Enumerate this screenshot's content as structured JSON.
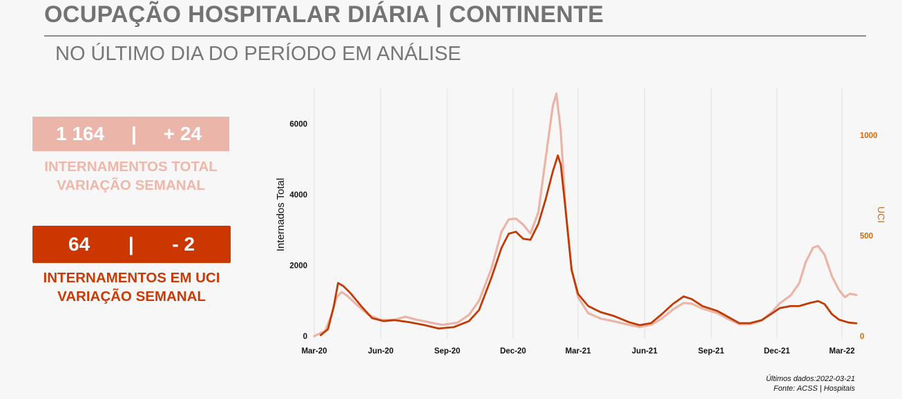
{
  "header": {
    "title": "OCUPAÇÃO HOSPITALAR DIÁRIA | CONTINENTE",
    "subtitle": "NO ÚLTIMO DIA DO PERÍODO EM ANÁLISE"
  },
  "kpis": {
    "total": {
      "value": "1 164",
      "separator": "|",
      "change": "+ 24",
      "label_line1": "INTERNAMENTOS TOTAL",
      "label_line2": "VARIAÇÃO SEMANAL",
      "color": "#ebb5aa"
    },
    "uci": {
      "value": "64",
      "separator": "|",
      "change": "- 2",
      "label_line1": "INTERNAMENTOS EM UCI",
      "label_line2": "VARIAÇÃO SEMANAL",
      "color": "#cc3700"
    }
  },
  "footnote": {
    "line1": "Últimos dados:2022-03-21",
    "line2": "Fonte: ACSS | Hospitais"
  },
  "chart_data": {
    "type": "line",
    "title": "",
    "xlabel": "",
    "ylabel": "Internados Total",
    "y2label": "UCI",
    "grid": "vertical",
    "legend": "none",
    "xlim": [
      "2020-03-01",
      "2022-03-21"
    ],
    "x_ticks": [
      {
        "date": "2020-03-01",
        "label": "Mar-20"
      },
      {
        "date": "2020-06-01",
        "label": "Jun-20"
      },
      {
        "date": "2020-09-01",
        "label": "Sep-20"
      },
      {
        "date": "2020-12-01",
        "label": "Dec-20"
      },
      {
        "date": "2021-03-01",
        "label": "Mar-21"
      },
      {
        "date": "2021-06-01",
        "label": "Jun-21"
      },
      {
        "date": "2021-09-01",
        "label": "Sep-21"
      },
      {
        "date": "2021-12-01",
        "label": "Dec-21"
      },
      {
        "date": "2022-03-01",
        "label": "Mar-22"
      }
    ],
    "ylim": [
      0,
      7000
    ],
    "y_ticks": [
      0,
      2000,
      4000,
      6000
    ],
    "y2lim": [
      0,
      1234
    ],
    "y2_ticks": [
      0,
      500,
      1000
    ],
    "y2_color": "#d06a10",
    "series": [
      {
        "axis": "left",
        "color": "#eab4a6",
        "points": [
          [
            "2020-03-01",
            0
          ],
          [
            "2020-03-16",
            150
          ],
          [
            "2020-03-25",
            600
          ],
          [
            "2020-04-01",
            1100
          ],
          [
            "2020-04-08",
            1250
          ],
          [
            "2020-04-15",
            1150
          ],
          [
            "2020-05-01",
            850
          ],
          [
            "2020-05-15",
            600
          ],
          [
            "2020-06-01",
            460
          ],
          [
            "2020-06-20",
            460
          ],
          [
            "2020-07-05",
            550
          ],
          [
            "2020-07-20",
            470
          ],
          [
            "2020-08-10",
            380
          ],
          [
            "2020-08-25",
            320
          ],
          [
            "2020-09-15",
            380
          ],
          [
            "2020-10-01",
            600
          ],
          [
            "2020-10-15",
            1000
          ],
          [
            "2020-11-01",
            1900
          ],
          [
            "2020-11-15",
            2950
          ],
          [
            "2020-11-25",
            3300
          ],
          [
            "2020-12-05",
            3320
          ],
          [
            "2020-12-15",
            3150
          ],
          [
            "2020-12-25",
            2900
          ],
          [
            "2021-01-05",
            3500
          ],
          [
            "2021-01-15",
            5000
          ],
          [
            "2021-01-25",
            6500
          ],
          [
            "2021-01-30",
            6850
          ],
          [
            "2021-02-05",
            5800
          ],
          [
            "2021-02-12",
            3500
          ],
          [
            "2021-02-20",
            1900
          ],
          [
            "2021-03-01",
            1100
          ],
          [
            "2021-03-15",
            650
          ],
          [
            "2021-04-01",
            500
          ],
          [
            "2021-04-20",
            420
          ],
          [
            "2021-05-10",
            320
          ],
          [
            "2021-05-25",
            260
          ],
          [
            "2021-06-10",
            320
          ],
          [
            "2021-06-25",
            500
          ],
          [
            "2021-07-10",
            750
          ],
          [
            "2021-07-25",
            940
          ],
          [
            "2021-08-05",
            920
          ],
          [
            "2021-08-20",
            780
          ],
          [
            "2021-09-10",
            650
          ],
          [
            "2021-09-25",
            480
          ],
          [
            "2021-10-10",
            340
          ],
          [
            "2021-10-25",
            340
          ],
          [
            "2021-11-10",
            440
          ],
          [
            "2021-11-25",
            700
          ],
          [
            "2021-12-05",
            930
          ],
          [
            "2021-12-20",
            1150
          ],
          [
            "2022-01-01",
            1500
          ],
          [
            "2022-01-10",
            2100
          ],
          [
            "2022-01-20",
            2500
          ],
          [
            "2022-01-27",
            2550
          ],
          [
            "2022-02-05",
            2300
          ],
          [
            "2022-02-15",
            1700
          ],
          [
            "2022-02-25",
            1300
          ],
          [
            "2022-03-05",
            1100
          ],
          [
            "2022-03-12",
            1200
          ],
          [
            "2022-03-21",
            1164
          ]
        ]
      },
      {
        "axis": "right",
        "color": "#c03a05",
        "points": [
          [
            "2020-03-10",
            5
          ],
          [
            "2020-03-20",
            35
          ],
          [
            "2020-03-28",
            150
          ],
          [
            "2020-04-03",
            265
          ],
          [
            "2020-04-10",
            250
          ],
          [
            "2020-04-20",
            215
          ],
          [
            "2020-05-05",
            150
          ],
          [
            "2020-05-20",
            90
          ],
          [
            "2020-06-05",
            75
          ],
          [
            "2020-06-20",
            80
          ],
          [
            "2020-07-10",
            70
          ],
          [
            "2020-08-01",
            55
          ],
          [
            "2020-08-20",
            38
          ],
          [
            "2020-09-10",
            45
          ],
          [
            "2020-10-01",
            75
          ],
          [
            "2020-10-15",
            130
          ],
          [
            "2020-11-01",
            290
          ],
          [
            "2020-11-15",
            440
          ],
          [
            "2020-11-25",
            510
          ],
          [
            "2020-12-05",
            520
          ],
          [
            "2020-12-15",
            485
          ],
          [
            "2020-12-25",
            480
          ],
          [
            "2021-01-05",
            560
          ],
          [
            "2021-01-15",
            680
          ],
          [
            "2021-01-25",
            820
          ],
          [
            "2021-02-01",
            900
          ],
          [
            "2021-02-05",
            855
          ],
          [
            "2021-02-12",
            620
          ],
          [
            "2021-02-20",
            330
          ],
          [
            "2021-03-01",
            210
          ],
          [
            "2021-03-15",
            150
          ],
          [
            "2021-04-01",
            120
          ],
          [
            "2021-04-20",
            100
          ],
          [
            "2021-05-10",
            70
          ],
          [
            "2021-05-25",
            55
          ],
          [
            "2021-06-10",
            65
          ],
          [
            "2021-06-25",
            110
          ],
          [
            "2021-07-10",
            160
          ],
          [
            "2021-07-25",
            198
          ],
          [
            "2021-08-05",
            185
          ],
          [
            "2021-08-20",
            150
          ],
          [
            "2021-09-10",
            125
          ],
          [
            "2021-09-25",
            95
          ],
          [
            "2021-10-10",
            65
          ],
          [
            "2021-10-25",
            65
          ],
          [
            "2021-11-10",
            80
          ],
          [
            "2021-11-25",
            115
          ],
          [
            "2021-12-05",
            140
          ],
          [
            "2021-12-20",
            150
          ],
          [
            "2022-01-01",
            150
          ],
          [
            "2022-01-15",
            165
          ],
          [
            "2022-01-27",
            175
          ],
          [
            "2022-02-05",
            160
          ],
          [
            "2022-02-15",
            110
          ],
          [
            "2022-02-25",
            82
          ],
          [
            "2022-03-10",
            68
          ],
          [
            "2022-03-21",
            64
          ]
        ]
      }
    ]
  }
}
